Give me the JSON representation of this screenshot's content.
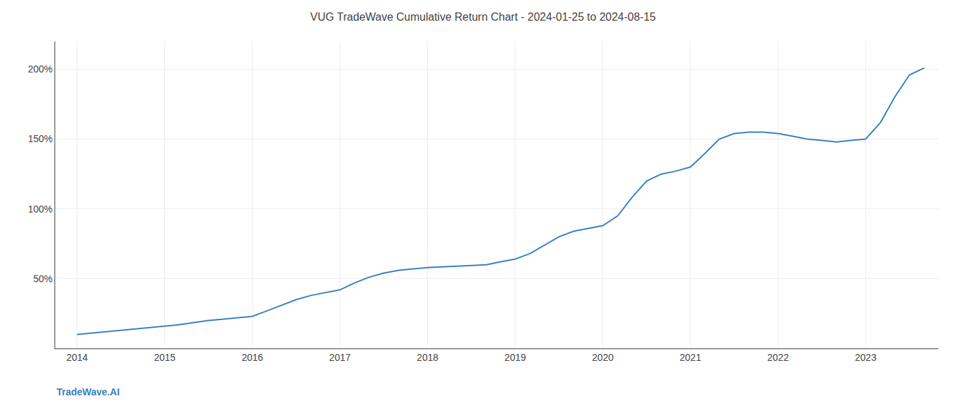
{
  "chart_data": {
    "type": "line",
    "title": "VUG TradeWave Cumulative Return Chart - 2024-01-25 to 2024-08-15",
    "annotations": [
      "TradeWave.AI"
    ],
    "x": [
      2014.0,
      2014.08,
      2014.17,
      2014.25,
      2014.33,
      2014.5,
      2014.67,
      2014.83,
      2015.0,
      2015.17,
      2015.33,
      2015.5,
      2015.67,
      2015.83,
      2016.0,
      2016.17,
      2016.33,
      2016.5,
      2016.67,
      2016.83,
      2017.0,
      2017.17,
      2017.33,
      2017.5,
      2017.67,
      2017.83,
      2018.0,
      2018.17,
      2018.33,
      2018.5,
      2018.67,
      2018.83,
      2019.0,
      2019.17,
      2019.33,
      2019.5,
      2019.67,
      2019.83,
      2020.0,
      2020.17,
      2020.33,
      2020.5,
      2020.67,
      2020.83,
      2021.0,
      2021.17,
      2021.33,
      2021.5,
      2021.67,
      2021.83,
      2022.0,
      2022.17,
      2022.33,
      2022.5,
      2022.67,
      2022.83,
      2023.0,
      2023.17,
      2023.33,
      2023.5,
      2023.67
    ],
    "values": [
      10,
      10.5,
      11,
      11.5,
      12,
      13,
      14,
      15,
      16,
      17,
      18.5,
      20,
      21,
      22,
      23,
      27,
      31,
      35,
      38,
      40,
      42,
      47,
      51,
      54,
      56,
      57,
      58,
      58.5,
      59,
      59.5,
      60,
      62,
      64,
      68,
      74,
      80,
      84,
      86,
      88,
      95,
      108,
      120,
      125,
      127,
      130,
      140,
      150,
      154,
      155,
      155,
      154,
      152,
      150,
      149,
      148,
      149,
      150,
      162,
      180,
      196,
      201
    ],
    "color": "#3a80c0",
    "xlim": [
      2013.75,
      2023.83
    ],
    "xticks": [
      2014,
      2015,
      2016,
      2017,
      2018,
      2019,
      2020,
      2021,
      2022,
      2023
    ],
    "ylim": [
      0,
      220
    ],
    "yticks": [
      {
        "value": 50,
        "label": "50%"
      },
      {
        "value": 100,
        "label": "100%"
      },
      {
        "value": 150,
        "label": "150%"
      },
      {
        "value": 200,
        "label": "200%"
      }
    ],
    "grid": true
  }
}
